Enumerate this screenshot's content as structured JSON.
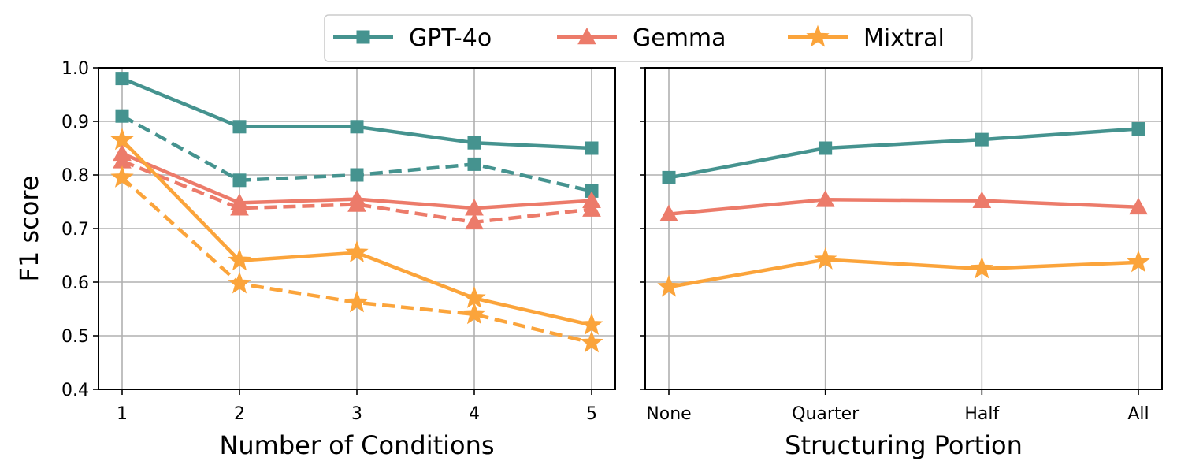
{
  "legend": [
    {
      "name": "GPT-4o",
      "color": "#45938f",
      "marker": "square"
    },
    {
      "name": "Gemma",
      "color": "#ec7b6a",
      "marker": "triangle"
    },
    {
      "name": "Mixtral",
      "color": "#fba43b",
      "marker": "star"
    }
  ],
  "chart_data": [
    {
      "type": "line",
      "xlabel": "Number of Conditions",
      "ylabel": "F1 score",
      "categories": [
        "1",
        "2",
        "3",
        "4",
        "5"
      ],
      "ylim": [
        0.4,
        1.0
      ],
      "yticks": [
        "0.4",
        "0.5",
        "0.6",
        "0.7",
        "0.8",
        "0.9",
        "1.0"
      ],
      "grid": true,
      "series": [
        {
          "name": "GPT-4o",
          "style": "solid",
          "values": [
            0.98,
            0.89,
            0.89,
            0.86,
            0.85
          ]
        },
        {
          "name": "GPT-4o",
          "style": "dashed",
          "values": [
            0.91,
            0.79,
            0.8,
            0.82,
            0.77
          ]
        },
        {
          "name": "Gemma",
          "style": "solid",
          "values": [
            0.84,
            0.748,
            0.755,
            0.738,
            0.752
          ]
        },
        {
          "name": "Gemma",
          "style": "dashed",
          "values": [
            0.826,
            0.738,
            0.745,
            0.712,
            0.736
          ]
        },
        {
          "name": "Mixtral",
          "style": "solid",
          "values": [
            0.865,
            0.64,
            0.655,
            0.57,
            0.52
          ]
        },
        {
          "name": "Mixtral",
          "style": "dashed",
          "values": [
            0.795,
            0.597,
            0.562,
            0.54,
            0.487
          ]
        }
      ]
    },
    {
      "type": "line",
      "xlabel": "Structuring Portion",
      "ylabel": "",
      "categories": [
        "None",
        "Quarter",
        "Half",
        "All"
      ],
      "ylim": [
        0.4,
        1.0
      ],
      "grid": true,
      "series": [
        {
          "name": "GPT-4o",
          "style": "solid",
          "values": [
            0.795,
            0.85,
            0.866,
            0.886
          ]
        },
        {
          "name": "Gemma",
          "style": "solid",
          "values": [
            0.727,
            0.754,
            0.752,
            0.74
          ]
        },
        {
          "name": "Mixtral",
          "style": "solid",
          "values": [
            0.591,
            0.642,
            0.625,
            0.637
          ]
        }
      ]
    }
  ]
}
